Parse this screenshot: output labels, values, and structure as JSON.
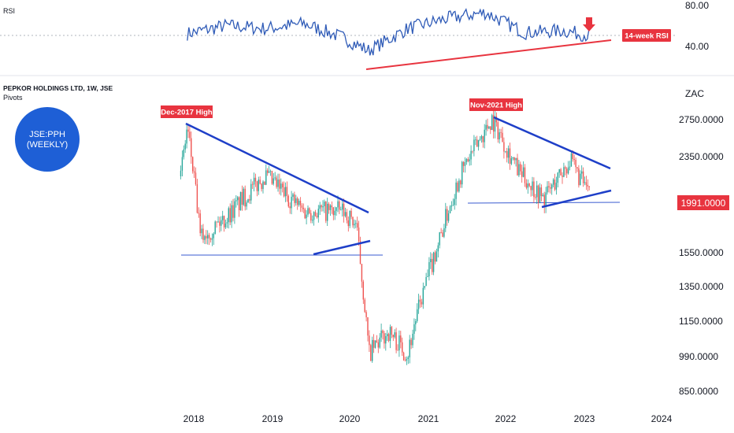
{
  "rsi_panel": {
    "label": "RSI",
    "y_ticks": [
      "80.00",
      "40.00"
    ],
    "annotation": "14-week RSI"
  },
  "main_panel": {
    "symbol_title": "PEPKOR HOLDINGS LTD, 1W, JSE",
    "indicator": "Pivots",
    "currency": "ZAC",
    "y_ticks": [
      "2750.0000",
      "2350.0000",
      "1550.0000",
      "1350.0000",
      "1150.0000",
      "990.0000",
      "850.0000"
    ],
    "last_price": "1991.0000",
    "badge": {
      "line1": "JSE:PPH",
      "line2": "(WEEKLY)"
    },
    "annotations": [
      "Dec-2017 High",
      "Nov-2021 High"
    ]
  },
  "x_ticks": [
    "2018",
    "2019",
    "2020",
    "2021",
    "2022",
    "2023",
    "2024"
  ],
  "colors": {
    "up": "#26a69a",
    "down": "#ef5350",
    "trendline": "#1e3fc8",
    "rsi_line": "#2f5bb7",
    "rsi_support": "#e8343f",
    "label_bg": "#e8343f",
    "badge": "#1e5fd6"
  },
  "chart_data": [
    {
      "type": "line",
      "title": "RSI",
      "series": [
        {
          "x": [
            "2017-12",
            "2018-06",
            "2018-12",
            "2019-06",
            "2019-12",
            "2020-04",
            "2020-10",
            "2021-04",
            "2021-10",
            "2022-04",
            "2022-10",
            "2023-02"
          ],
          "values": [
            52,
            60,
            57,
            62,
            48,
            35,
            57,
            67,
            73,
            53,
            55,
            50
          ]
        }
      ],
      "ylim": [
        25,
        90
      ],
      "annotation": "14-week RSI",
      "trendline": {
        "from": [
          "2020-04",
          30
        ],
        "to": [
          "2023-05",
          48
        ]
      }
    },
    {
      "type": "candlestick",
      "title": "PEPKOR HOLDINGS LTD, 1W, JSE",
      "ylabel": "ZAC",
      "ylim": [
        800,
        2900
      ],
      "last_value": 1991,
      "approx_close_path": {
        "x": [
          "2017-11",
          "2017-12",
          "2018-02",
          "2018-06",
          "2018-12",
          "2019-06",
          "2019-12",
          "2020-02",
          "2020-04",
          "2020-07",
          "2020-10",
          "2021-03",
          "2021-06",
          "2021-11",
          "2022-03",
          "2022-07",
          "2022-11",
          "2023-02"
        ],
        "values": [
          2150,
          2650,
          1650,
          1800,
          2150,
          1850,
          1850,
          1750,
          1000,
          1100,
          1000,
          1650,
          2150,
          2750,
          2200,
          1950,
          2300,
          1991
        ]
      },
      "annotations": [
        {
          "text": "Dec-2017 High",
          "x": "2017-12",
          "y": 2700
        },
        {
          "text": "Nov-2021 High",
          "x": "2021-11",
          "y": 2750
        }
      ],
      "horizontal_levels": [
        1560,
        1940
      ]
    }
  ]
}
